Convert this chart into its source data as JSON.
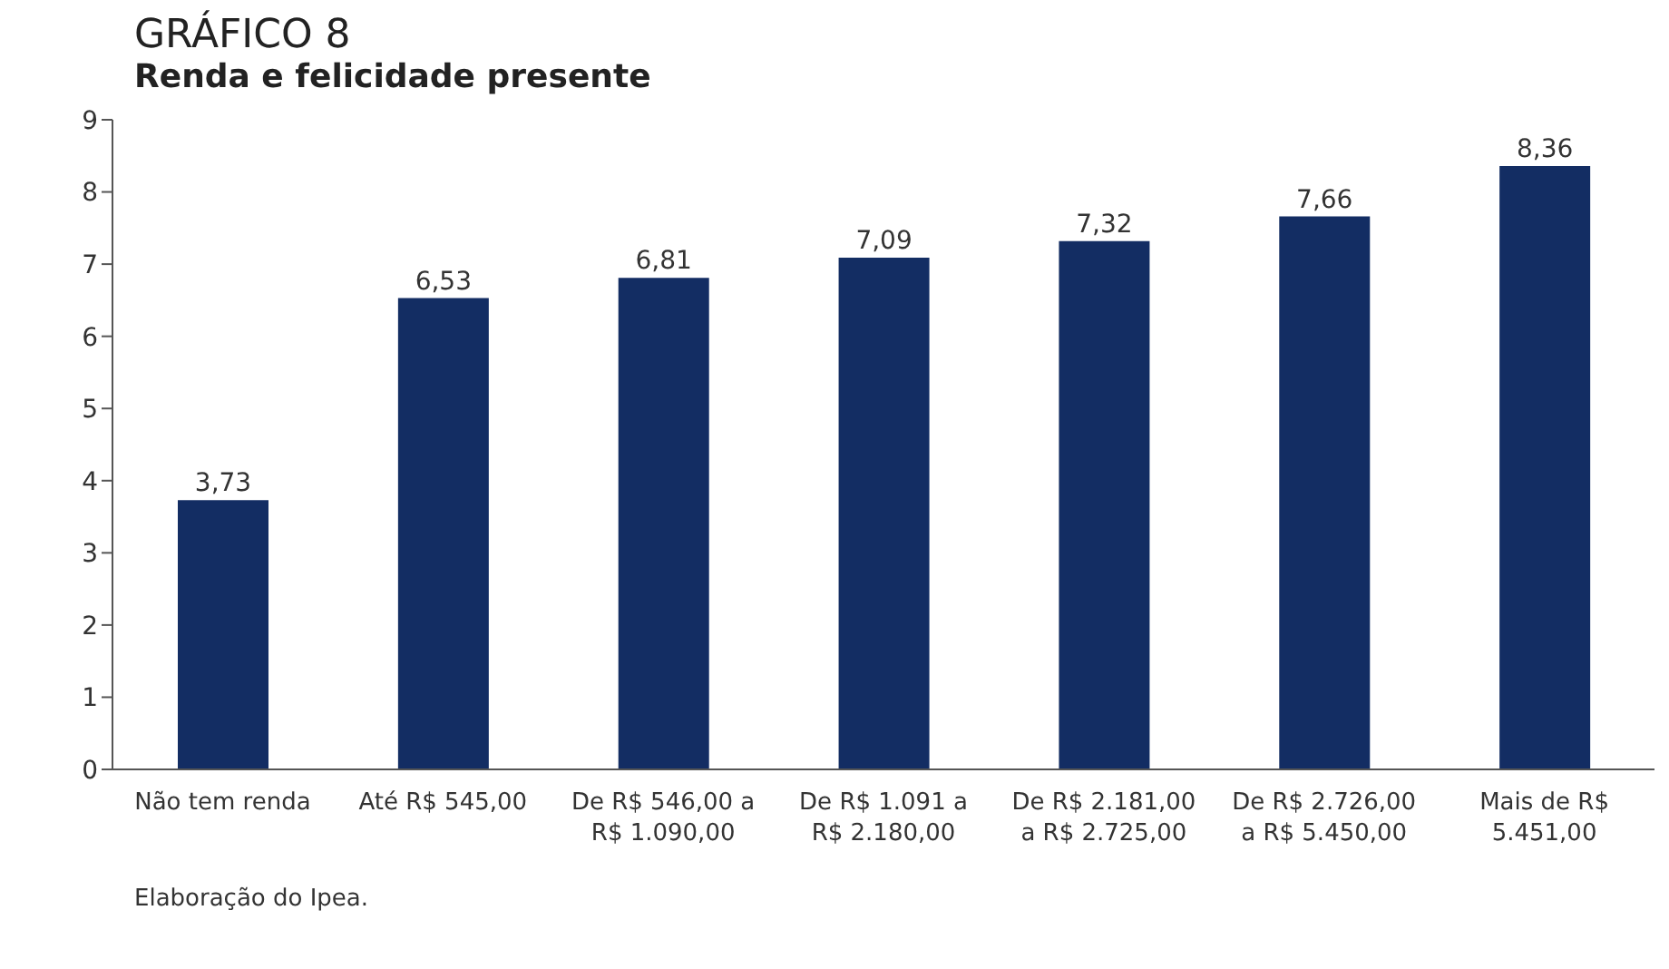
{
  "chart_data": {
    "type": "bar",
    "title": "GRÁFICO 8",
    "subtitle": "Renda e felicidade presente",
    "categories": [
      "Não tem renda",
      "Até R$ 545,00",
      "De R$ 546,00 a R$ 1.090,00",
      "De R$ 1.091 a R$ 2.180,00",
      "De R$ 2.181,00 a R$ 2.725,00",
      "De R$ 2.726,00 a R$ 5.450,00",
      "Mais de R$ 5.451,00"
    ],
    "values": [
      3.73,
      6.53,
      6.81,
      7.09,
      7.32,
      7.66,
      8.36
    ],
    "value_labels": [
      "3,73",
      "6,53",
      "6,81",
      "7,09",
      "7,32",
      "7,66",
      "8,36"
    ],
    "color": "#132d63",
    "ylim": [
      0,
      9
    ],
    "yticks": [
      0,
      1,
      2,
      3,
      4,
      5,
      6,
      7,
      8,
      9
    ],
    "grid": false,
    "legend": false,
    "annotations": [
      "Elaboração do Ipea."
    ]
  }
}
